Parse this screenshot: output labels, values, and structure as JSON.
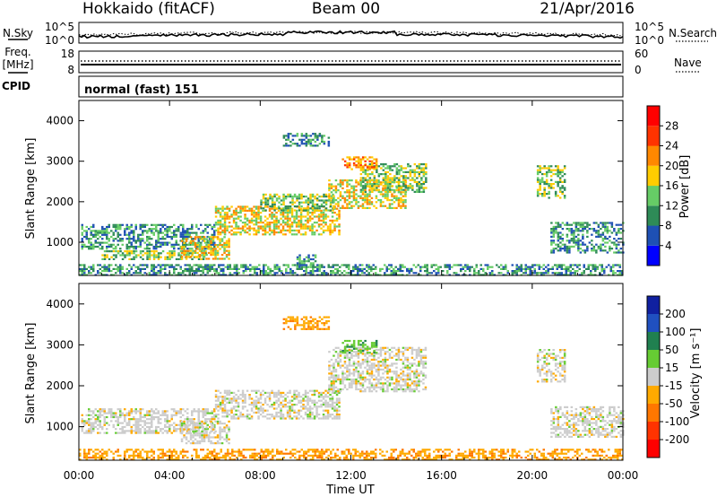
{
  "header": {
    "station": "Hokkaido (fitACF)",
    "beam": "Beam 00",
    "date": "21/Apr/2016"
  },
  "strip_nsky": {
    "left_label": "N.Sky",
    "right_label": "N.Search",
    "left_ticks": [
      "10^5",
      "10^0"
    ],
    "right_ticks": [
      "10^5",
      "10^0"
    ]
  },
  "strip_freq": {
    "left_label_1": "Freq.",
    "left_label_2": "[MHz]",
    "right_label": "Nave",
    "left_ticks": [
      "18",
      "8"
    ],
    "right_ticks": [
      "60",
      "0"
    ]
  },
  "strip_cpid": {
    "left_label": "CPID",
    "mode_text": "normal (fast) 151"
  },
  "x_axis": {
    "label": "Time UT",
    "ticks": [
      "00:00",
      "04:00",
      "08:00",
      "12:00",
      "16:00",
      "20:00",
      "00:00"
    ]
  },
  "power_panel": {
    "ylabel": "Slant Range [km]",
    "yticks": [
      "1000",
      "2000",
      "3000",
      "4000"
    ],
    "colorbar_title": "Power [dB]",
    "colorbar_ticks": [
      "4",
      "8",
      "12",
      "16",
      "20",
      "24",
      "28"
    ],
    "colors": [
      "#0000ff",
      "#1e50b4",
      "#2e8b57",
      "#66cc66",
      "#ffcc00",
      "#ff8800",
      "#ff3300",
      "#ff0000"
    ]
  },
  "velocity_panel": {
    "ylabel": "Slant Range [km]",
    "yticks": [
      "1000",
      "2000",
      "3000",
      "4000"
    ],
    "colorbar_title": "Velocity [m s⁻¹]",
    "colorbar_ticks": [
      "200",
      "100",
      "50",
      "15",
      "-15",
      "-50",
      "-100",
      "-200"
    ],
    "colors": [
      "#1020a0",
      "#2050c0",
      "#208050",
      "#66cc33",
      "#cccccc",
      "#ffaa00",
      "#ff7700",
      "#ff3300",
      "#ff0000"
    ]
  },
  "chart_data": {
    "type": "heatmap",
    "x_range_hours": [
      0,
      24
    ],
    "y_range_km": [
      180,
      4500
    ],
    "power_regions": [
      {
        "t0": 0.1,
        "t1": 6.0,
        "r0": 850,
        "r1": 1450,
        "level": 10
      },
      {
        "t0": 1.0,
        "t1": 5.6,
        "r0": 560,
        "r1": 800,
        "level": 16
      },
      {
        "t0": 4.5,
        "t1": 6.6,
        "r0": 580,
        "r1": 1150,
        "level": 20
      },
      {
        "t0": 6.0,
        "t1": 11.5,
        "r0": 1200,
        "r1": 1900,
        "level": 18
      },
      {
        "t0": 8.0,
        "t1": 11.2,
        "r0": 1800,
        "r1": 2200,
        "level": 16
      },
      {
        "t0": 11.0,
        "t1": 14.4,
        "r0": 1850,
        "r1": 2550,
        "level": 18
      },
      {
        "t0": 12.4,
        "t1": 15.3,
        "r0": 2250,
        "r1": 2950,
        "level": 16
      },
      {
        "t0": 11.6,
        "t1": 13.1,
        "r0": 2800,
        "r1": 3120,
        "level": 24
      },
      {
        "t0": 9.0,
        "t1": 11.0,
        "r0": 3400,
        "r1": 3700,
        "level": 12
      },
      {
        "t0": 9.6,
        "t1": 10.4,
        "r0": 400,
        "r1": 700,
        "level": 10
      },
      {
        "t0": 20.2,
        "t1": 21.4,
        "r0": 2100,
        "r1": 2900,
        "level": 14
      },
      {
        "t0": 20.8,
        "t1": 24.0,
        "r0": 750,
        "r1": 1500,
        "level": 12
      },
      {
        "t0": 0.0,
        "t1": 24.0,
        "r0": 180,
        "r1": 460,
        "level": 12
      }
    ],
    "velocity_regions": [
      {
        "t0": 0.1,
        "t1": 6.0,
        "r0": 850,
        "r1": 1450,
        "v": 0
      },
      {
        "t0": 4.5,
        "t1": 6.6,
        "r0": 580,
        "r1": 1150,
        "v": 0
      },
      {
        "t0": 6.0,
        "t1": 11.5,
        "r0": 1200,
        "r1": 1900,
        "v": 0
      },
      {
        "t0": 11.0,
        "t1": 15.3,
        "r0": 1850,
        "r1": 2950,
        "v": 0
      },
      {
        "t0": 11.6,
        "t1": 13.1,
        "r0": 2800,
        "r1": 3120,
        "v": 40
      },
      {
        "t0": 9.0,
        "t1": 11.0,
        "r0": 3400,
        "r1": 3700,
        "v": -40
      },
      {
        "t0": 20.2,
        "t1": 21.4,
        "r0": 2100,
        "r1": 2900,
        "v": 0
      },
      {
        "t0": 20.8,
        "t1": 24.0,
        "r0": 750,
        "r1": 1500,
        "v": 0
      },
      {
        "t0": 0.0,
        "t1": 24.0,
        "r0": 180,
        "r1": 460,
        "v": -40
      }
    ]
  }
}
